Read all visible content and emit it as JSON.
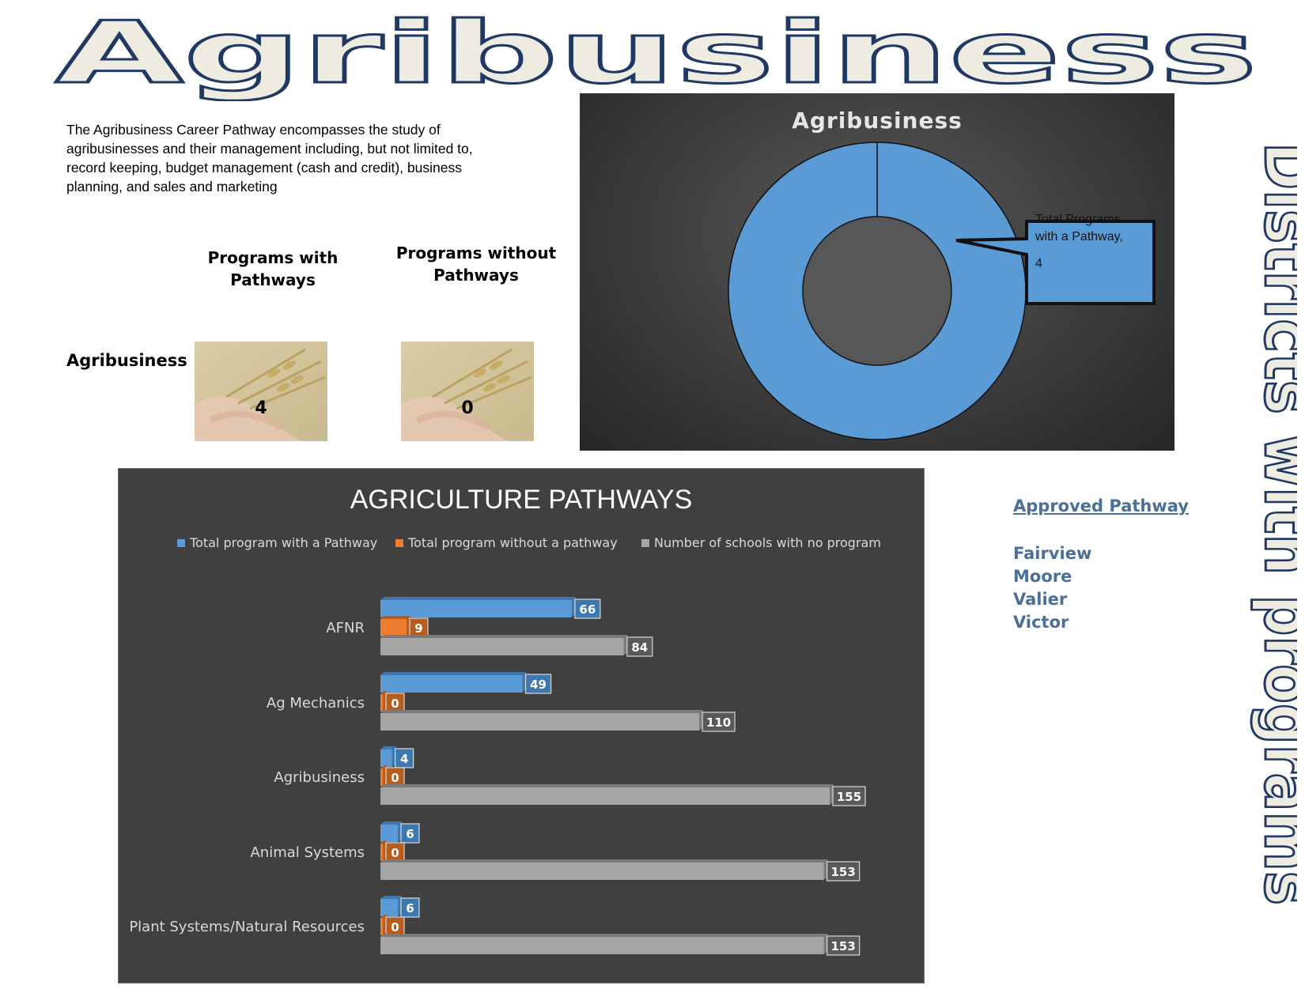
{
  "banner": {
    "title": "Agribusiness"
  },
  "description": "The Agribusiness Career Pathway encompasses the study of agribusinesses and their management including, but not limited to, record keeping, budget management (cash and credit), business planning, and sales and marketing",
  "summary": {
    "col_with": "Programs with Pathways",
    "col_without": "Programs without Pathways",
    "row_label": "Agribusiness",
    "with_value": "4",
    "without_value": "0"
  },
  "side_title": "Districts with programs",
  "approved": {
    "heading": "Approved Pathway",
    "districts": [
      "Fairview",
      "Moore",
      "Valier",
      "Victor"
    ]
  },
  "colors": {
    "accent_blue": "#5b9bd5",
    "accent_orange": "#ed7d31",
    "accent_gray": "#a5a5a5",
    "district_text": "#4a6f98",
    "banner_outline": "#1f3864",
    "banner_fill": "#eeece1"
  },
  "chart_data": [
    {
      "type": "pie",
      "variant": "doughnut",
      "title": "Agribusiness",
      "slices": [
        {
          "name": "Total Programs with a Pathway",
          "value": 4
        }
      ],
      "callout": {
        "label": "Total Programs with a Pathway,",
        "value": "4"
      }
    },
    {
      "type": "bar",
      "orientation": "horizontal",
      "title": "AGRICULTURE PATHWAYS",
      "legend_position": "top",
      "categories": [
        "AFNR",
        "Ag Mechanics",
        "Agribusiness",
        "Animal Systems",
        "Plant Systems/Natural Resources"
      ],
      "series": [
        {
          "name": "Total program with a Pathway",
          "color": "#5b9bd5",
          "values": [
            66,
            49,
            4,
            6,
            6
          ]
        },
        {
          "name": "Total program without a pathway",
          "color": "#ed7d31",
          "values": [
            9,
            0,
            0,
            0,
            0
          ]
        },
        {
          "name": "Number of schools with no program",
          "color": "#a5a5a5",
          "values": [
            84,
            110,
            155,
            153,
            153
          ]
        }
      ],
      "xlim": [
        0,
        155
      ],
      "grid": false
    }
  ]
}
